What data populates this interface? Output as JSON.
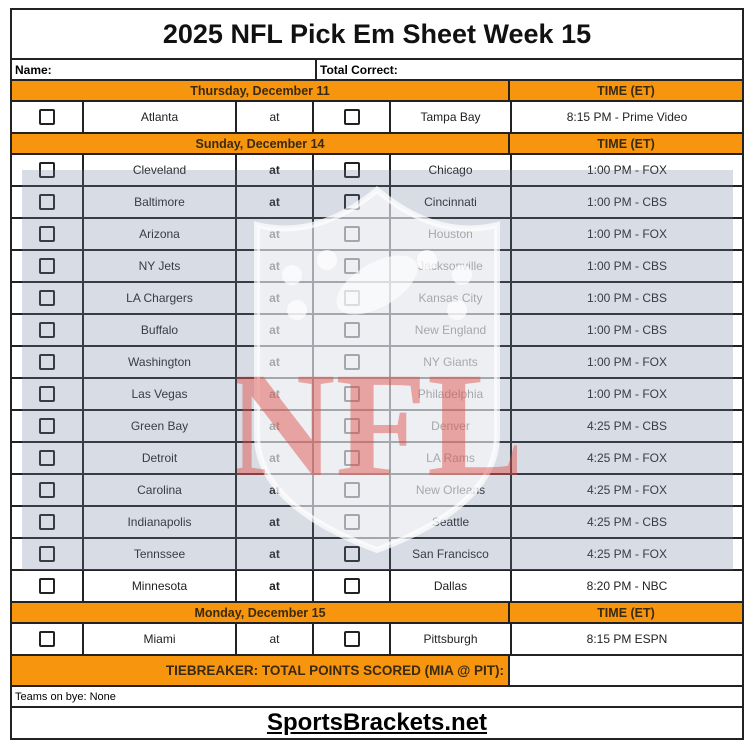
{
  "title": "2025 NFL Pick Em Sheet Week 15",
  "name_label": "Name:",
  "total_label": "Total Correct:",
  "sections": [
    {
      "day": "Thursday, December 11",
      "time_header": "TIME (ET)",
      "games": [
        {
          "away": "Atlanta",
          "at": "at",
          "home": "Tampa Bay",
          "time": "8:15 PM - Prime Video"
        }
      ]
    },
    {
      "day": "Sunday, December 14",
      "time_header": "TIME (ET)",
      "games": [
        {
          "away": "Cleveland",
          "at": "at",
          "home": "Chicago",
          "time": "1:00 PM - FOX"
        },
        {
          "away": "Baltimore",
          "at": "at",
          "home": "Cincinnati",
          "time": "1:00 PM - CBS"
        },
        {
          "away": "Arizona",
          "at": "at",
          "home": "Houston",
          "time": "1:00 PM - FOX"
        },
        {
          "away": "NY Jets",
          "at": "at",
          "home": "Jacksonville",
          "time": "1:00 PM - CBS"
        },
        {
          "away": "LA Chargers",
          "at": "at",
          "home": "Kansas City",
          "time": "1:00 PM - CBS"
        },
        {
          "away": "Buffalo",
          "at": "at",
          "home": "New England",
          "time": "1:00 PM - CBS"
        },
        {
          "away": "Washington",
          "at": "at",
          "home": "NY Giants",
          "time": "1:00 PM - FOX"
        },
        {
          "away": "Las Vegas",
          "at": "at",
          "home": "Philadelphia",
          "time": "1:00 PM - FOX"
        },
        {
          "away": "Green Bay",
          "at": "at",
          "home": "Denver",
          "time": "4:25 PM - CBS"
        },
        {
          "away": "Detroit",
          "at": "at",
          "home": "LA Rams",
          "time": "4:25 PM - FOX"
        },
        {
          "away": "Carolina",
          "at": "at",
          "home": "New Orleans",
          "time": "4:25 PM - FOX"
        },
        {
          "away": "Indianapolis",
          "at": "at",
          "home": "Seattle",
          "time": "4:25 PM - CBS"
        },
        {
          "away": "Tennssee",
          "at": "at",
          "home": "San Francisco",
          "time": "4:25 PM - FOX"
        },
        {
          "away": "Minnesota",
          "at": "at",
          "home": "Dallas",
          "time": "8:20 PM - NBC"
        }
      ]
    },
    {
      "day": "Monday, December 15",
      "time_header": "TIME (ET)",
      "games": [
        {
          "away": "Miami",
          "at": "at",
          "home": "Pittsburgh",
          "time": "8:15 PM ESPN"
        }
      ]
    }
  ],
  "tiebreaker": "TIEBREAKER: TOTAL POINTS SCORED (MIA @ PIT):",
  "bye": "Teams on bye: None",
  "footer": "SportsBrackets.net",
  "watermark": "NFL",
  "colors": {
    "header": "#f7950e",
    "watermark_red": "#e0473f"
  }
}
